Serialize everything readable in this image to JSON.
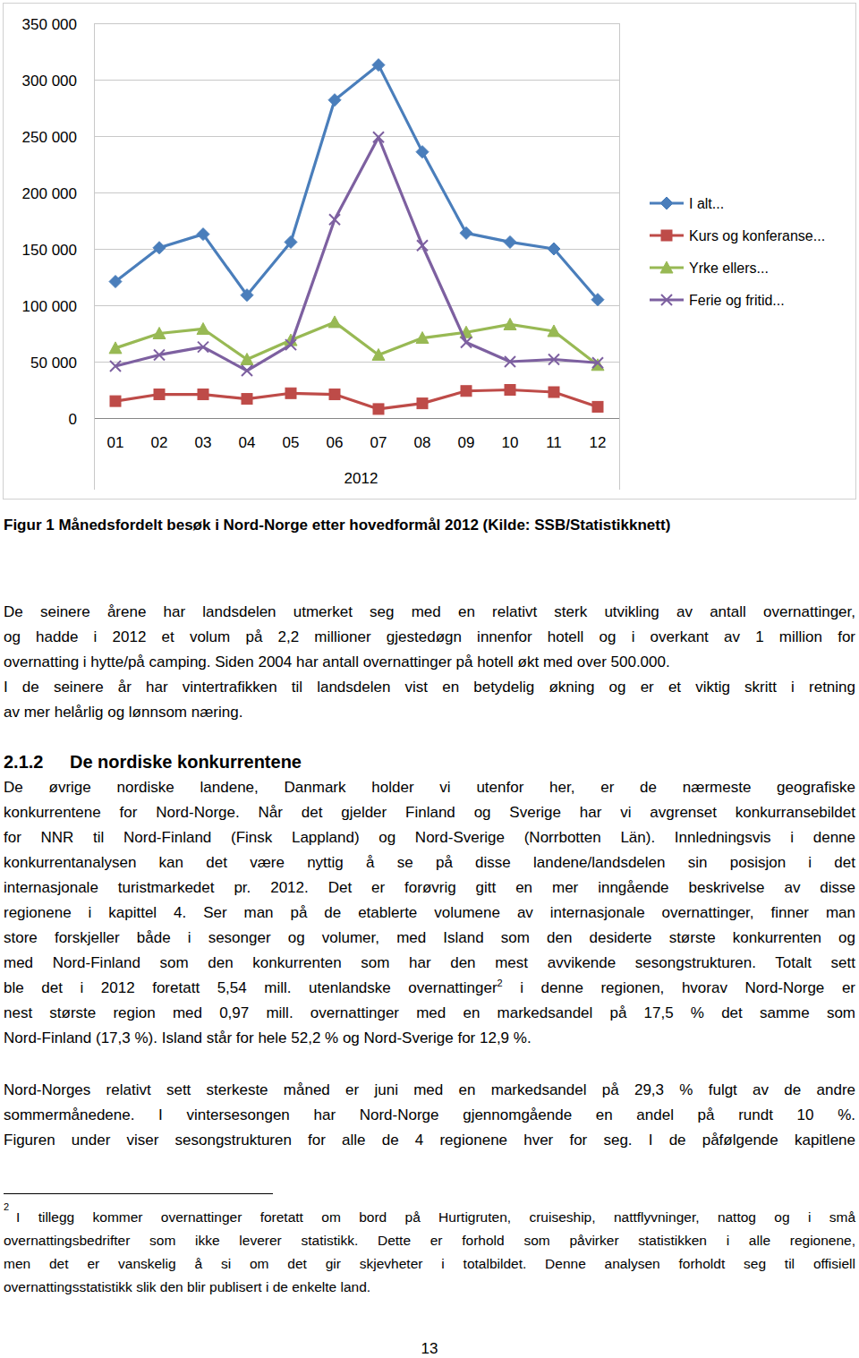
{
  "chart_data": {
    "type": "line",
    "categories": [
      "01",
      "02",
      "03",
      "04",
      "05",
      "06",
      "07",
      "08",
      "09",
      "10",
      "11",
      "12"
    ],
    "xlabel": "2012",
    "series": [
      {
        "name": "I alt...",
        "color": "#4a7ebb",
        "marker": "diamond",
        "line_style": "solid",
        "values": [
          121000,
          151000,
          163000,
          109000,
          156000,
          282000,
          313000,
          236000,
          164000,
          156000,
          150000,
          105000
        ]
      },
      {
        "name": "Kurs og konferanse...",
        "color": "#be4b48",
        "marker": "square",
        "line_style": "solid",
        "values": [
          15000,
          21000,
          21000,
          17000,
          22000,
          21000,
          8000,
          13000,
          24000,
          25000,
          23000,
          10000
        ]
      },
      {
        "name": "Yrke ellers...",
        "color": "#98b954",
        "marker": "triangle",
        "line_style": "solid",
        "values": [
          62000,
          75000,
          79000,
          52000,
          69000,
          85000,
          56000,
          71000,
          76000,
          83000,
          77000,
          47000
        ]
      },
      {
        "name": "Ferie og fritid...",
        "color": "#7d60a0",
        "marker": "x",
        "line_style": "solid",
        "values": [
          46000,
          56000,
          63000,
          42000,
          65000,
          176000,
          249000,
          153000,
          67000,
          50000,
          52000,
          49000
        ]
      }
    ],
    "ylim": [
      0,
      350000
    ],
    "yticks": [
      0,
      {
        "value": 50000,
        "label": "50 000"
      },
      {
        "value": 100000,
        "label": "100 000"
      },
      {
        "value": 150000,
        "label": "150 000"
      },
      {
        "value": 200000,
        "label": "200 000"
      },
      {
        "value": 250000,
        "label": "250 000"
      },
      {
        "value": 300000,
        "label": "300 000"
      },
      {
        "value": 350000,
        "label": "350 000"
      }
    ],
    "grid": true,
    "legend": "right"
  },
  "document": {
    "caption": "Figur 1 Månedsfordelt besøk i Nord-Norge etter hovedformål 2012 (Kilde: SSB/Statistikknett)",
    "paragraphs": [
      {
        "lines": [
          "De seinere årene har landsdelen utmerket seg med en relativt sterk utvikling av antall overnattinger,",
          "og hadde i 2012 et volum på 2,2 millioner gjestedøgn innenfor hotell og i overkant av 1 million for",
          "overnatting i hytte/på camping. Siden 2004 har antall overnattinger på hotell økt med over 500.000."
        ]
      },
      {
        "lines": [
          "I de seinere år har vintertrafikken til landsdelen vist en betydelig økning og er et viktig skritt i retning",
          "av mer helårlig og lønnsom næring."
        ]
      },
      {
        "lines": [
          "De øvrige nordiske landene, Danmark holder vi utenfor her, er de nærmeste geografiske",
          "konkurrentene for Nord-Norge. Når det gjelder Finland og Sverige har vi avgrenset konkurransebildet",
          "for NNR til Nord-Finland (Finsk Lappland) og Nord-Sverige (Norrbotten Län). Innledningsvis i denne",
          "konkurrentanalysen kan det være nyttig å se på disse landene/landsdelen sin posisjon i det",
          "internasjonale turistmarkedet pr. 2012. Det er forøvrig gitt en mer inngående beskrivelse av disse",
          "regionene i kapittel 4. Ser man på de etablerte volumene av internasjonale overnattinger, finner man",
          "store forskjeller både i sesonger og volumer, med Island som den desiderte største konkurrenten og",
          "med Nord-Finland som den konkurrenten som har den mest avvikende sesongstrukturen. Totalt sett",
          [
            "ble det i 2012 foretatt 5,54 mill. utenlandske overnattinger",
            {
              "sup": "2"
            },
            " i denne regionen, hvorav Nord-Norge er"
          ],
          "nest største region med 0,97 mill. overnattinger med en markedsandel på 17,5 % det samme som",
          "Nord-Finland (17,3 %). Island står for hele 52,2 % og Nord-Sverige for 12,9 %."
        ]
      },
      {
        "lines": [
          "Nord-Norges relativt sett sterkeste måned er juni med en markedsandel på 29,3 % fulgt av de andre",
          "sommermånedene. I vintersesongen har Nord-Norge gjennomgående en andel på rundt 10 %.",
          "Figuren under viser sesongstrukturen for alle de 4 regionene hver for seg. I de påfølgende kapitlene"
        ]
      }
    ],
    "heading": {
      "number": "2.1.2",
      "title": "De nordiske konkurrentene"
    },
    "footnote": {
      "mark": "2",
      "lines": [
        "I tillegg kommer overnattinger foretatt om bord på Hurtigruten, cruiseship, nattflyvninger, nattog og i små",
        "overnattingsbedrifter som ikke leverer statistikk. Dette er forhold som påvirker statistikken i alle regionene,",
        "men det er vanskelig å si om det gir skjevheter i totalbildet. Denne analysen forholdt seg til offisiell",
        "overnattingsstatistikk slik den blir publisert i de enkelte land."
      ]
    },
    "page_number": "13"
  }
}
